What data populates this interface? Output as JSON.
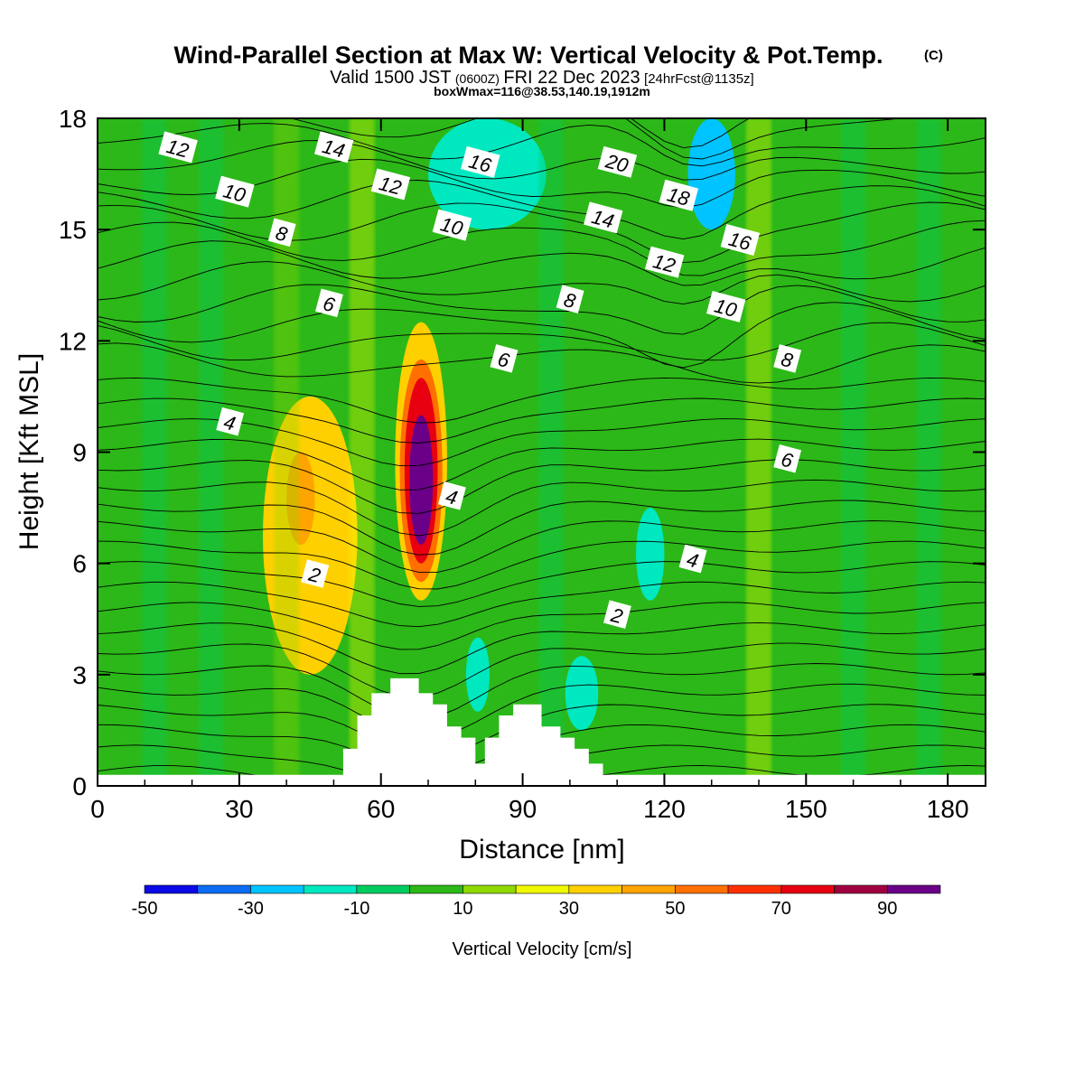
{
  "chart_data": {
    "type": "heatmap",
    "title": "Wind-Parallel Section at Max W: Vertical Velocity & Pot.Temp.",
    "title_mark": "(C)",
    "subtitle_parts": [
      "Valid 1500 JST",
      "(0600Z)",
      "FRI 22 Dec 2023",
      "[24hrFcst@1135z]"
    ],
    "subtitle2": "boxWmax=116@38.53,140.19,1912m",
    "xlabel": "Distance [nm]",
    "ylabel": "Height [Kft MSL]",
    "xlim": [
      0,
      188
    ],
    "ylim": [
      0,
      18
    ],
    "x_ticks": [
      "0",
      "30",
      "60",
      "90",
      "120",
      "150",
      "180"
    ],
    "y_ticks": [
      "0",
      "3",
      "6",
      "9",
      "12",
      "15",
      "18"
    ],
    "colorbar": {
      "label": "Vertical Velocity [cm/s]",
      "levels": [
        -50,
        -40,
        -30,
        -20,
        -10,
        0,
        10,
        20,
        30,
        40,
        50,
        60,
        70,
        80,
        90,
        100
      ],
      "tick_labels": [
        "-50",
        "-30",
        "-10",
        "10",
        "30",
        "50",
        "70",
        "90"
      ],
      "colors": [
        "#0a0ae6",
        "#0a6cf2",
        "#00c4ff",
        "#00e8c0",
        "#00cc60",
        "#2cb818",
        "#90d800",
        "#f0f800",
        "#ffd000",
        "#ffa400",
        "#ff7000",
        "#ff3000",
        "#e80010",
        "#a00040",
        "#6a0088"
      ]
    },
    "vertical_velocity_cells": [
      {
        "x": [
          35,
          55
        ],
        "y": [
          3,
          10.5
        ],
        "w": 30
      },
      {
        "x": [
          40,
          46
        ],
        "y": [
          6.5,
          9
        ],
        "w": 40
      },
      {
        "x": [
          63,
          74
        ],
        "y": [
          5,
          12.5
        ],
        "w": 30
      },
      {
        "x": [
          64,
          73
        ],
        "y": [
          5.5,
          11.5
        ],
        "w": 50
      },
      {
        "x": [
          65,
          72
        ],
        "y": [
          6,
          11
        ],
        "w": 70
      },
      {
        "x": [
          66,
          71
        ],
        "y": [
          6.5,
          10
        ],
        "w": 90
      },
      {
        "x": [
          114,
          120
        ],
        "y": [
          5,
          7.5
        ],
        "w": -20
      },
      {
        "x": [
          78,
          83
        ],
        "y": [
          2,
          4
        ],
        "w": -20
      },
      {
        "x": [
          99,
          106
        ],
        "y": [
          1.5,
          3.5
        ],
        "w": -20
      },
      {
        "x": [
          70,
          95
        ],
        "y": [
          15,
          18
        ],
        "w": -20
      },
      {
        "x": [
          125,
          135
        ],
        "y": [
          15,
          18
        ],
        "w": -30
      }
    ],
    "terrain_kft": [
      [
        0,
        0.3
      ],
      [
        52,
        0.3
      ],
      [
        52,
        1
      ],
      [
        55,
        1
      ],
      [
        55,
        1.9
      ],
      [
        58,
        1.9
      ],
      [
        58,
        2.5
      ],
      [
        62,
        2.5
      ],
      [
        62,
        2.9
      ],
      [
        68,
        2.9
      ],
      [
        68,
        2.5
      ],
      [
        71,
        2.5
      ],
      [
        71,
        2.2
      ],
      [
        74,
        2.2
      ],
      [
        74,
        1.6
      ],
      [
        77,
        1.6
      ],
      [
        77,
        1.3
      ],
      [
        80,
        1.3
      ],
      [
        80,
        0.6
      ],
      [
        82,
        0.6
      ],
      [
        82,
        1.3
      ],
      [
        85,
        1.3
      ],
      [
        85,
        1.9
      ],
      [
        88,
        1.9
      ],
      [
        88,
        2.2
      ],
      [
        94,
        2.2
      ],
      [
        94,
        1.6
      ],
      [
        98,
        1.6
      ],
      [
        98,
        1.3
      ],
      [
        101,
        1.3
      ],
      [
        101,
        1.0
      ],
      [
        104,
        1.0
      ],
      [
        104,
        0.6
      ],
      [
        107,
        0.6
      ],
      [
        107,
        0.3
      ],
      [
        188,
        0.3
      ]
    ],
    "theta_contour_labels": [
      {
        "text": "12",
        "x": 17,
        "y": 17.2
      },
      {
        "text": "14",
        "x": 50,
        "y": 17.2
      },
      {
        "text": "16",
        "x": 81,
        "y": 16.8
      },
      {
        "text": "20",
        "x": 110,
        "y": 16.8
      },
      {
        "text": "10",
        "x": 29,
        "y": 16.0
      },
      {
        "text": "12",
        "x": 62,
        "y": 16.2
      },
      {
        "text": "18",
        "x": 123,
        "y": 15.9
      },
      {
        "text": "14",
        "x": 107,
        "y": 15.3
      },
      {
        "text": "10",
        "x": 75,
        "y": 15.1
      },
      {
        "text": "8",
        "x": 39,
        "y": 14.9
      },
      {
        "text": "16",
        "x": 136,
        "y": 14.7
      },
      {
        "text": "12",
        "x": 120,
        "y": 14.1
      },
      {
        "text": "6",
        "x": 49,
        "y": 13.0
      },
      {
        "text": "8",
        "x": 100,
        "y": 13.1
      },
      {
        "text": "10",
        "x": 133,
        "y": 12.9
      },
      {
        "text": "6",
        "x": 86,
        "y": 11.5
      },
      {
        "text": "8",
        "x": 146,
        "y": 11.5
      },
      {
        "text": "4",
        "x": 28,
        "y": 9.8
      },
      {
        "text": "6",
        "x": 146,
        "y": 8.8
      },
      {
        "text": "4",
        "x": 75,
        "y": 7.8
      },
      {
        "text": "4",
        "x": 126,
        "y": 6.1
      },
      {
        "text": "2",
        "x": 46,
        "y": 5.7
      },
      {
        "text": "2",
        "x": 110,
        "y": 4.6
      }
    ]
  }
}
